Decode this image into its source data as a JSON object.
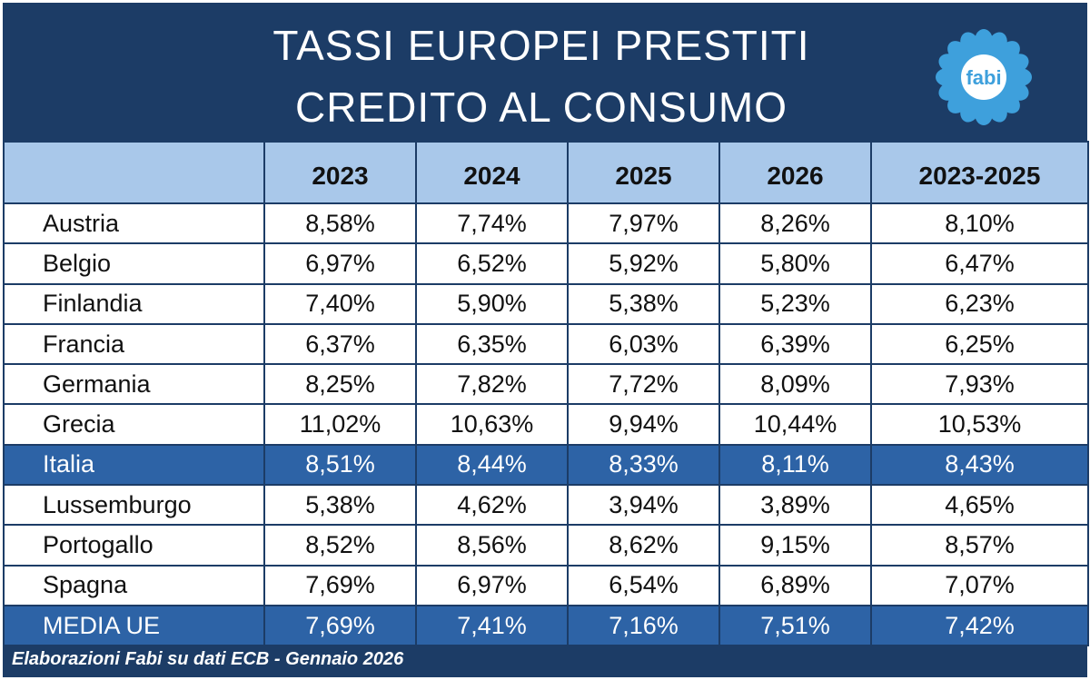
{
  "header": {
    "title_line1": "TASSI EUROPEI PRESTITI",
    "title_line2": "CREDITO AL CONSUMO",
    "logo_text": "fabi"
  },
  "colors": {
    "navy": "#1c3c66",
    "header_row": "#a9c8ea",
    "highlight": "#2d63a6",
    "logo": "#3ea0dc"
  },
  "chart_data": {
    "type": "table",
    "title": "TASSI EUROPEI PRESTITI CREDITO AL CONSUMO",
    "columns": [
      "",
      "2023",
      "2024",
      "2025",
      "2026",
      "2023-2025"
    ],
    "rows": [
      {
        "name": "Austria",
        "values": [
          "8,58%",
          "7,74%",
          "7,97%",
          "8,26%",
          "8,10%"
        ]
      },
      {
        "name": "Belgio",
        "values": [
          "6,97%",
          "6,52%",
          "5,92%",
          "5,80%",
          "6,47%"
        ]
      },
      {
        "name": "Finlandia",
        "values": [
          "7,40%",
          "5,90%",
          "5,38%",
          "5,23%",
          "6,23%"
        ]
      },
      {
        "name": "Francia",
        "values": [
          "6,37%",
          "6,35%",
          "6,03%",
          "6,39%",
          "6,25%"
        ]
      },
      {
        "name": "Germania",
        "values": [
          "8,25%",
          "7,82%",
          "7,72%",
          "8,09%",
          "7,93%"
        ]
      },
      {
        "name": "Grecia",
        "values": [
          "11,02%",
          "10,63%",
          "9,94%",
          "10,44%",
          "10,53%"
        ]
      },
      {
        "name": "Italia",
        "values": [
          "8,51%",
          "8,44%",
          "8,33%",
          "8,11%",
          "8,43%"
        ],
        "highlight": true
      },
      {
        "name": "Lussemburgo",
        "values": [
          "5,38%",
          "4,62%",
          "3,94%",
          "3,89%",
          "4,65%"
        ]
      },
      {
        "name": "Portogallo",
        "values": [
          "8,52%",
          "8,56%",
          "8,62%",
          "9,15%",
          "8,57%"
        ]
      },
      {
        "name": "Spagna",
        "values": [
          "7,69%",
          "6,97%",
          "6,54%",
          "6,89%",
          "7,07%"
        ]
      },
      {
        "name": "MEDIA UE",
        "values": [
          "7,69%",
          "7,41%",
          "7,16%",
          "7,51%",
          "7,42%"
        ],
        "highlight": true
      }
    ]
  },
  "footer": {
    "source": "Elaborazioni Fabi su dati ECB - Gennaio 2026"
  }
}
